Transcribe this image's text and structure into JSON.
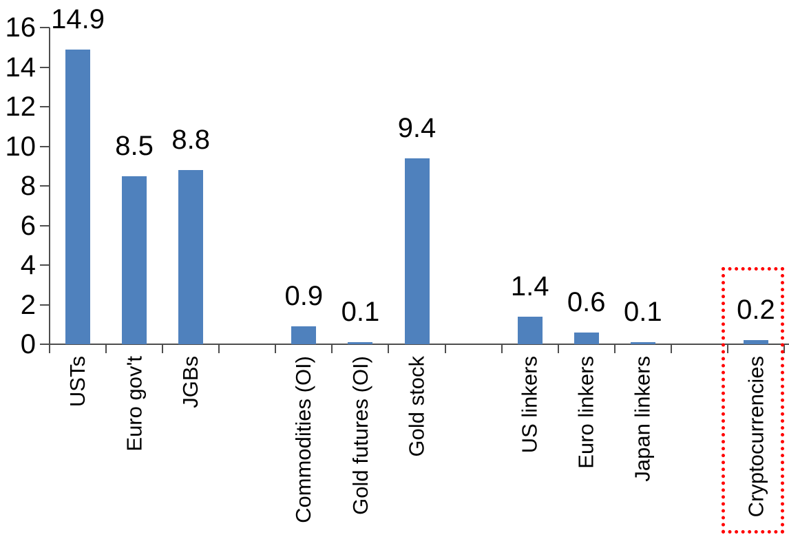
{
  "chart_data": {
    "type": "bar",
    "title": "",
    "xlabel": "",
    "ylabel": "",
    "categories": [
      "USTs",
      "Euro gov't",
      "JGBs",
      "Commodities (OI)",
      "Gold futures (OI)",
      "Gold stock",
      "US linkers",
      "Euro linkers",
      "Japan linkers",
      "Cryptocurrencies"
    ],
    "values": [
      14.9,
      8.5,
      8.8,
      0.9,
      0.1,
      9.4,
      1.4,
      0.6,
      0.1,
      0.2
    ],
    "data_labels": [
      "14.9",
      "8.5",
      "8.8",
      "0.9",
      "0.1",
      "9.4",
      "1.4",
      "0.6",
      "0.1",
      "0.2"
    ],
    "slot_index": [
      0,
      1,
      2,
      4,
      5,
      6,
      8,
      9,
      10,
      12
    ],
    "n_slots": 13,
    "y_ticks": [
      "0",
      "2",
      "4",
      "6",
      "8",
      "10",
      "12",
      "14",
      "16"
    ],
    "y_tick_values": [
      0,
      2,
      4,
      6,
      8,
      10,
      12,
      14,
      16
    ],
    "ylim": [
      0,
      16
    ],
    "grid": false,
    "legend": "none",
    "bar_color": "#4F81BD",
    "axis_color": "#4d4d4d",
    "label_color": "#000000",
    "highlight": {
      "category": "Cryptocurrencies",
      "shape": "red-dotted-rectangle",
      "color": "#FF0000"
    }
  }
}
